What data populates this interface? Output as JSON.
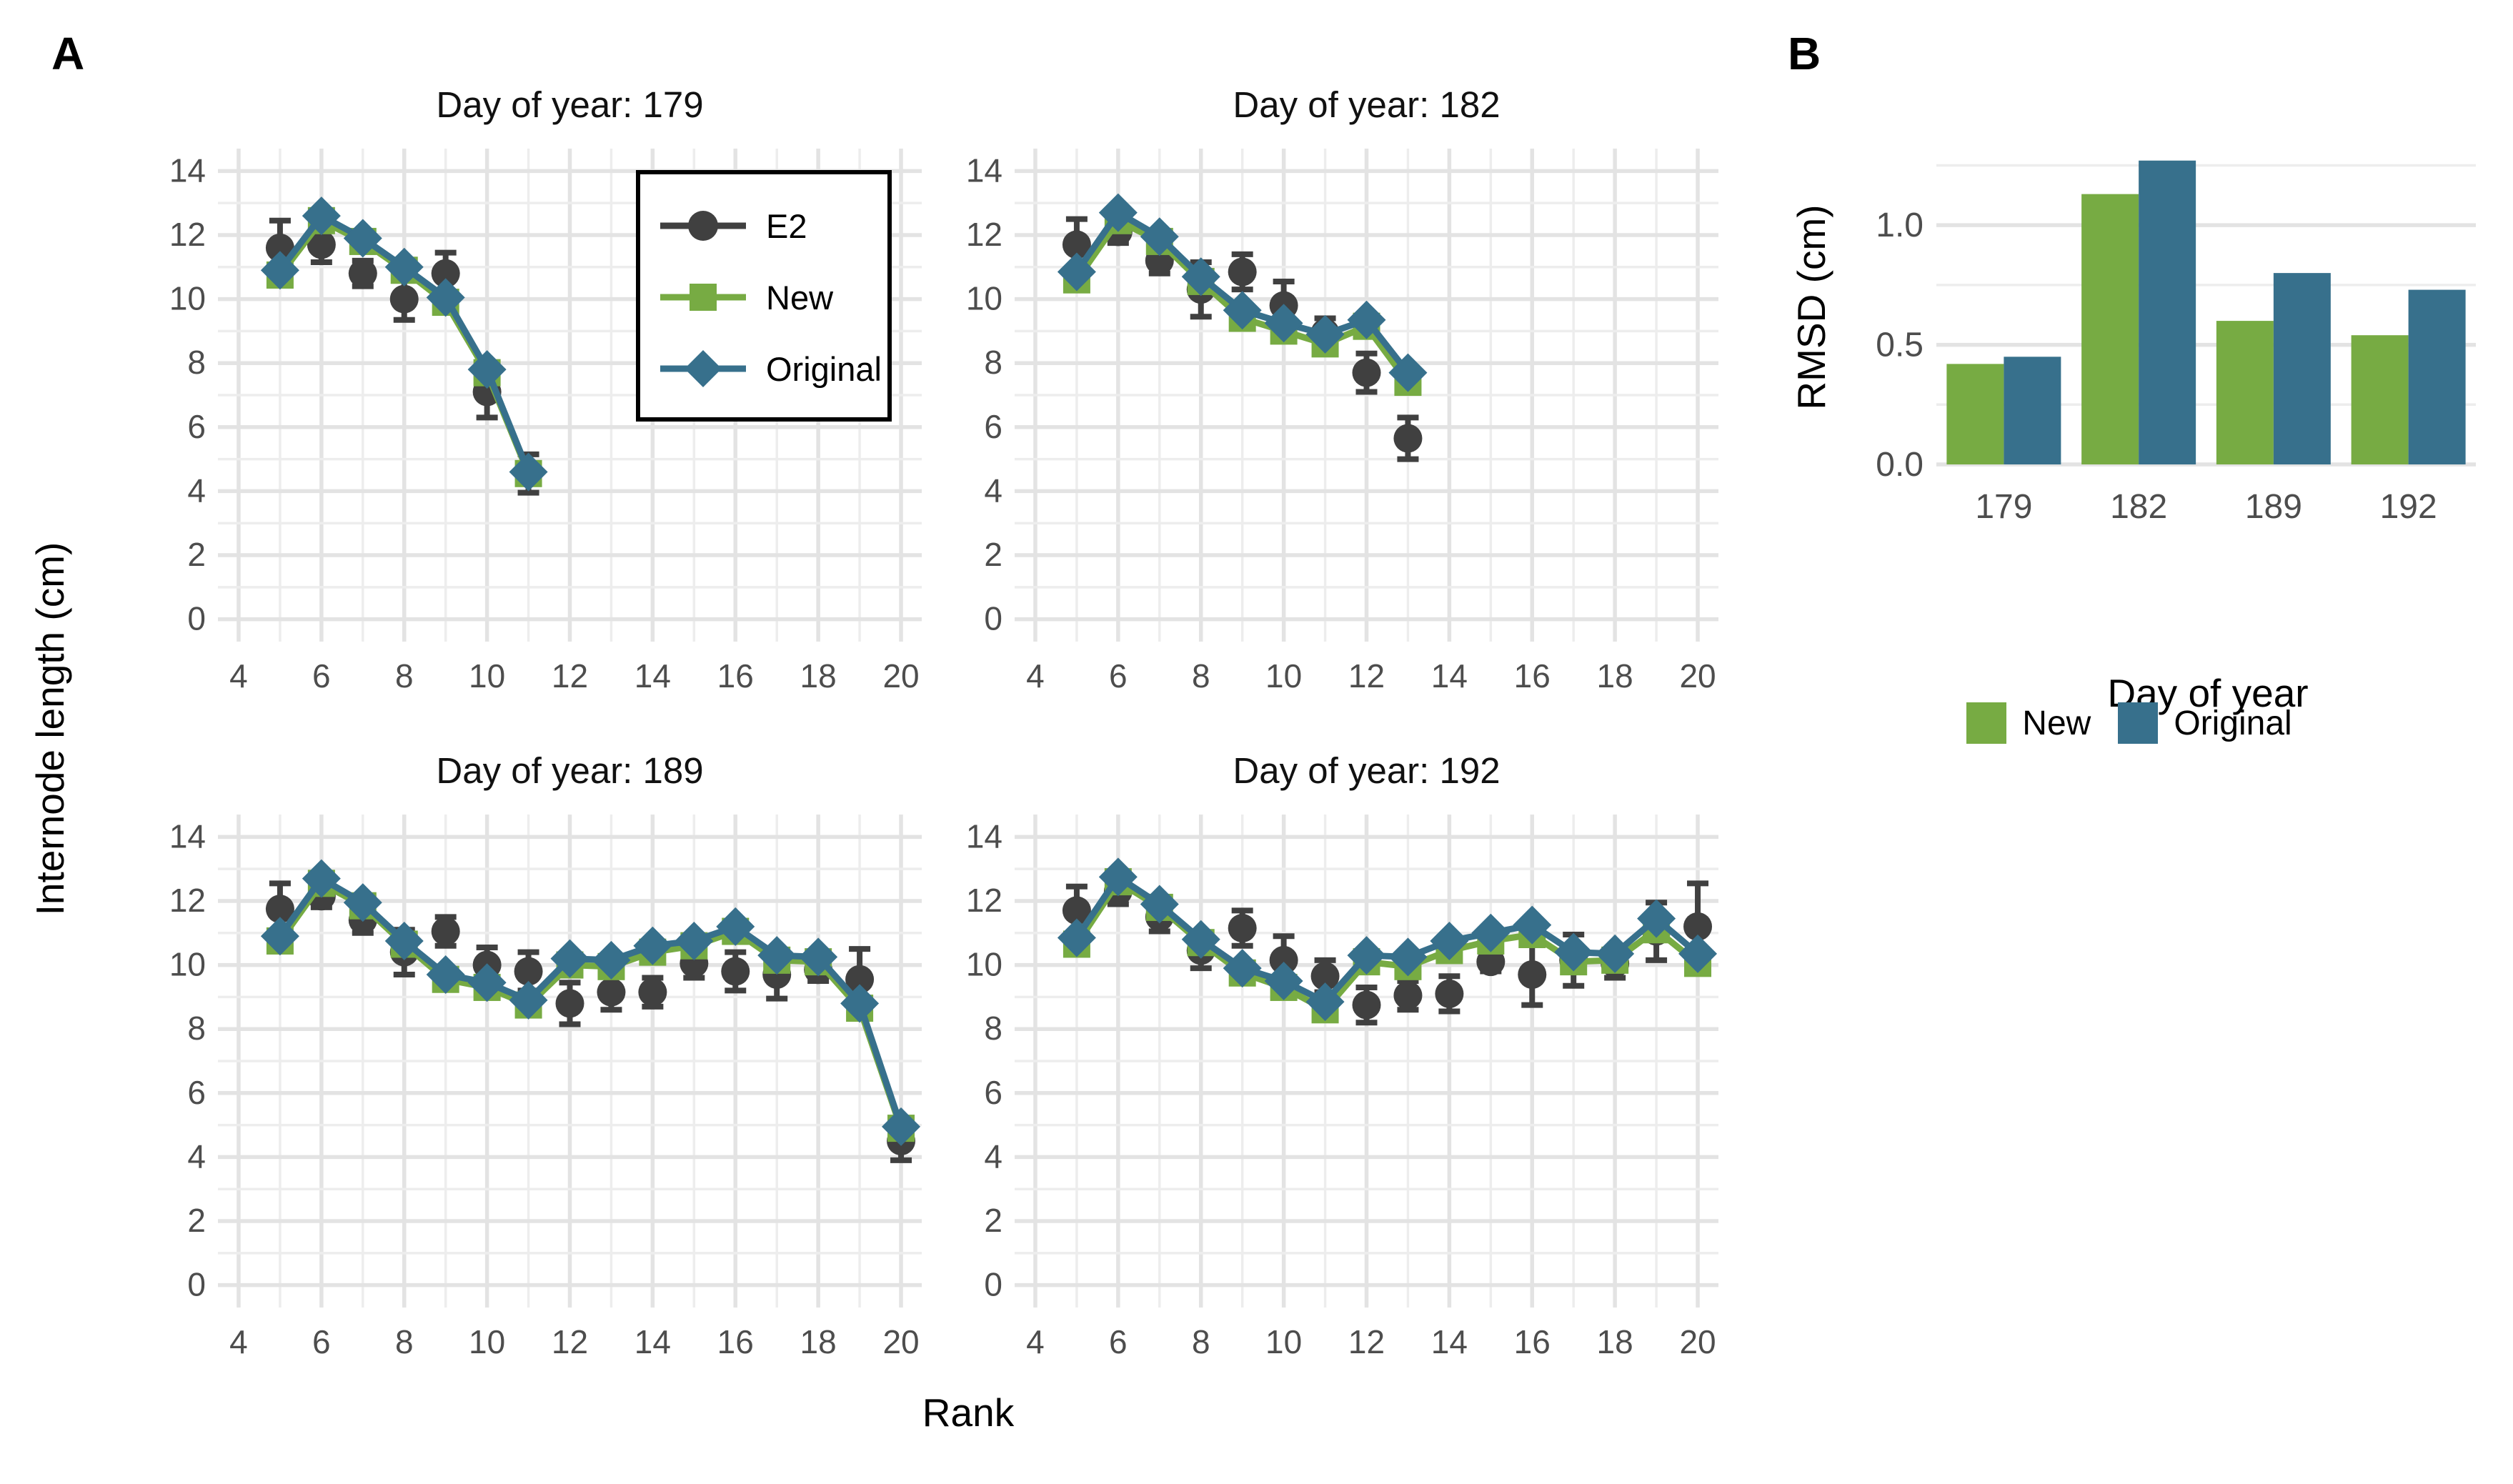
{
  "panel_a": {
    "label": "A",
    "y_axis_title": "Internode length (cm)",
    "x_axis_title": "Rank",
    "legend": {
      "items": [
        {
          "label": "E2",
          "marker": "circle-icon",
          "color": "#404040"
        },
        {
          "label": "New",
          "marker": "square-icon",
          "color": "#77ab43"
        },
        {
          "label": "Original",
          "marker": "diamond-icon",
          "color": "#37708c"
        }
      ]
    }
  },
  "panel_b": {
    "label": "B"
  },
  "colors": {
    "e2": "#404040",
    "new": "#77ab43",
    "original": "#37708c",
    "grid_major": "#e3e3e3",
    "grid_minor": "#ededed",
    "tick_text": "#4d4d4d"
  },
  "chart_data": [
    {
      "type": "line",
      "panel": "A",
      "title": "Day of year: 179",
      "xlabel": "Rank",
      "ylabel": "Internode length (cm)",
      "xlim": [
        3.5,
        20.5
      ],
      "ylim": [
        -0.7,
        14.7
      ],
      "grid": "on",
      "x_ticks": [
        4,
        6,
        8,
        10,
        12,
        14,
        16,
        18,
        20
      ],
      "y_ticks": [
        0,
        2,
        4,
        6,
        8,
        10,
        12,
        14
      ],
      "x": [
        5,
        6,
        7,
        8,
        9,
        10,
        11
      ],
      "series": [
        {
          "name": "E2",
          "marker": "circle",
          "line": false,
          "values": [
            11.6,
            11.7,
            10.8,
            10.0,
            10.8,
            7.1,
            4.55
          ],
          "errors": [
            0.85,
            0.55,
            0.4,
            0.65,
            0.65,
            0.8,
            0.6
          ]
        },
        {
          "name": "New",
          "marker": "square",
          "line": true,
          "values": [
            10.75,
            12.45,
            11.8,
            10.9,
            9.9,
            7.7,
            4.55
          ]
        },
        {
          "name": "Original",
          "marker": "diamond",
          "line": true,
          "values": [
            10.9,
            12.6,
            11.9,
            11.0,
            10.05,
            7.8,
            4.6
          ]
        }
      ]
    },
    {
      "type": "line",
      "panel": "A",
      "title": "Day of year: 182",
      "xlabel": "Rank",
      "ylabel": "Internode length (cm)",
      "xlim": [
        3.5,
        20.5
      ],
      "ylim": [
        -0.7,
        14.7
      ],
      "grid": "on",
      "x_ticks": [
        4,
        6,
        8,
        10,
        12,
        14,
        16,
        18,
        20
      ],
      "y_ticks": [
        0,
        2,
        4,
        6,
        8,
        10,
        12,
        14
      ],
      "x": [
        5,
        6,
        7,
        8,
        9,
        10,
        11,
        12,
        13
      ],
      "series": [
        {
          "name": "E2",
          "marker": "circle",
          "line": false,
          "values": [
            11.7,
            12.1,
            11.2,
            10.3,
            10.85,
            9.8,
            8.95,
            7.7,
            5.65
          ],
          "errors": [
            0.8,
            0.35,
            0.4,
            0.85,
            0.55,
            0.75,
            0.45,
            0.6,
            0.65
          ]
        },
        {
          "name": "New",
          "marker": "square",
          "line": true,
          "values": [
            10.6,
            12.45,
            11.8,
            10.55,
            9.4,
            9.0,
            8.6,
            9.15,
            7.4
          ]
        },
        {
          "name": "Original",
          "marker": "diamond",
          "line": true,
          "values": [
            10.85,
            12.7,
            11.95,
            10.7,
            9.65,
            9.25,
            8.9,
            9.35,
            7.7
          ]
        }
      ]
    },
    {
      "type": "line",
      "panel": "A",
      "title": "Day of year: 189",
      "xlabel": "Rank",
      "ylabel": "Internode length (cm)",
      "xlim": [
        3.5,
        20.5
      ],
      "ylim": [
        -0.7,
        14.7
      ],
      "grid": "on",
      "x_ticks": [
        4,
        6,
        8,
        10,
        12,
        14,
        16,
        18,
        20
      ],
      "y_ticks": [
        0,
        2,
        4,
        6,
        8,
        10,
        12,
        14
      ],
      "x": [
        5,
        6,
        7,
        8,
        9,
        10,
        11,
        12,
        13,
        14,
        15,
        16,
        17,
        18,
        19,
        20
      ],
      "series": [
        {
          "name": "E2",
          "marker": "circle",
          "line": false,
          "values": [
            11.75,
            12.15,
            11.4,
            10.4,
            11.05,
            10.0,
            9.8,
            8.8,
            9.15,
            9.15,
            10.05,
            9.8,
            9.7,
            9.85,
            9.55,
            4.5
          ],
          "errors": [
            0.8,
            0.35,
            0.4,
            0.7,
            0.45,
            0.55,
            0.6,
            0.65,
            0.55,
            0.45,
            0.45,
            0.6,
            0.75,
            0.35,
            0.95,
            0.6
          ]
        },
        {
          "name": "New",
          "marker": "square",
          "line": true,
          "values": [
            10.75,
            12.55,
            11.85,
            10.65,
            9.55,
            9.3,
            8.75,
            10.0,
            9.95,
            10.4,
            10.6,
            11.05,
            10.15,
            10.1,
            8.65,
            4.9
          ]
        },
        {
          "name": "Original",
          "marker": "diamond",
          "line": true,
          "values": [
            10.9,
            12.7,
            11.95,
            10.75,
            9.7,
            9.45,
            8.9,
            10.2,
            10.15,
            10.6,
            10.75,
            11.2,
            10.3,
            10.25,
            8.8,
            4.95
          ]
        }
      ]
    },
    {
      "type": "line",
      "panel": "A",
      "title": "Day of year: 192",
      "xlabel": "Rank",
      "ylabel": "Internode length (cm)",
      "xlim": [
        3.5,
        20.5
      ],
      "ylim": [
        -0.7,
        14.7
      ],
      "grid": "on",
      "x_ticks": [
        4,
        6,
        8,
        10,
        12,
        14,
        16,
        18,
        20
      ],
      "y_ticks": [
        0,
        2,
        4,
        6,
        8,
        10,
        12,
        14
      ],
      "x": [
        5,
        6,
        7,
        8,
        9,
        10,
        11,
        12,
        13,
        14,
        15,
        16,
        17,
        18,
        19,
        20
      ],
      "series": [
        {
          "name": "E2",
          "marker": "circle",
          "line": false,
          "values": [
            11.7,
            12.3,
            11.5,
            10.45,
            11.15,
            10.15,
            9.65,
            8.75,
            9.05,
            9.1,
            10.1,
            9.7,
            10.15,
            10.05,
            11.05,
            11.2
          ],
          "errors": [
            0.75,
            0.4,
            0.45,
            0.55,
            0.55,
            0.75,
            0.5,
            0.55,
            0.45,
            0.55,
            0.3,
            0.95,
            0.8,
            0.45,
            0.9,
            1.35
          ]
        },
        {
          "name": "New",
          "marker": "square",
          "line": true,
          "values": [
            10.65,
            12.6,
            11.8,
            10.7,
            9.75,
            9.3,
            8.6,
            10.1,
            9.95,
            10.45,
            10.75,
            10.95,
            10.1,
            10.15,
            11.1,
            10.05
          ]
        },
        {
          "name": "Original",
          "marker": "diamond",
          "line": true,
          "values": [
            10.85,
            12.75,
            11.9,
            10.8,
            9.9,
            9.5,
            8.85,
            10.3,
            10.25,
            10.75,
            11.0,
            11.25,
            10.4,
            10.35,
            11.45,
            10.35
          ]
        }
      ]
    },
    {
      "type": "bar",
      "panel": "B",
      "title": "",
      "xlabel": "Day of year",
      "ylabel": "RMSD (cm)",
      "ylim": [
        0,
        1.32
      ],
      "grid": "on",
      "legend_position": "bottom",
      "categories": [
        "179",
        "182",
        "189",
        "192"
      ],
      "y_ticks": [
        0,
        0.5,
        1.0
      ],
      "y_tick_labels": [
        "0.0",
        "0.5",
        "1.0"
      ],
      "grid_step": 0.25,
      "series": [
        {
          "name": "New",
          "values": [
            0.42,
            1.13,
            0.6,
            0.54
          ]
        },
        {
          "name": "Original",
          "values": [
            0.45,
            1.27,
            0.8,
            0.73
          ]
        }
      ]
    }
  ]
}
